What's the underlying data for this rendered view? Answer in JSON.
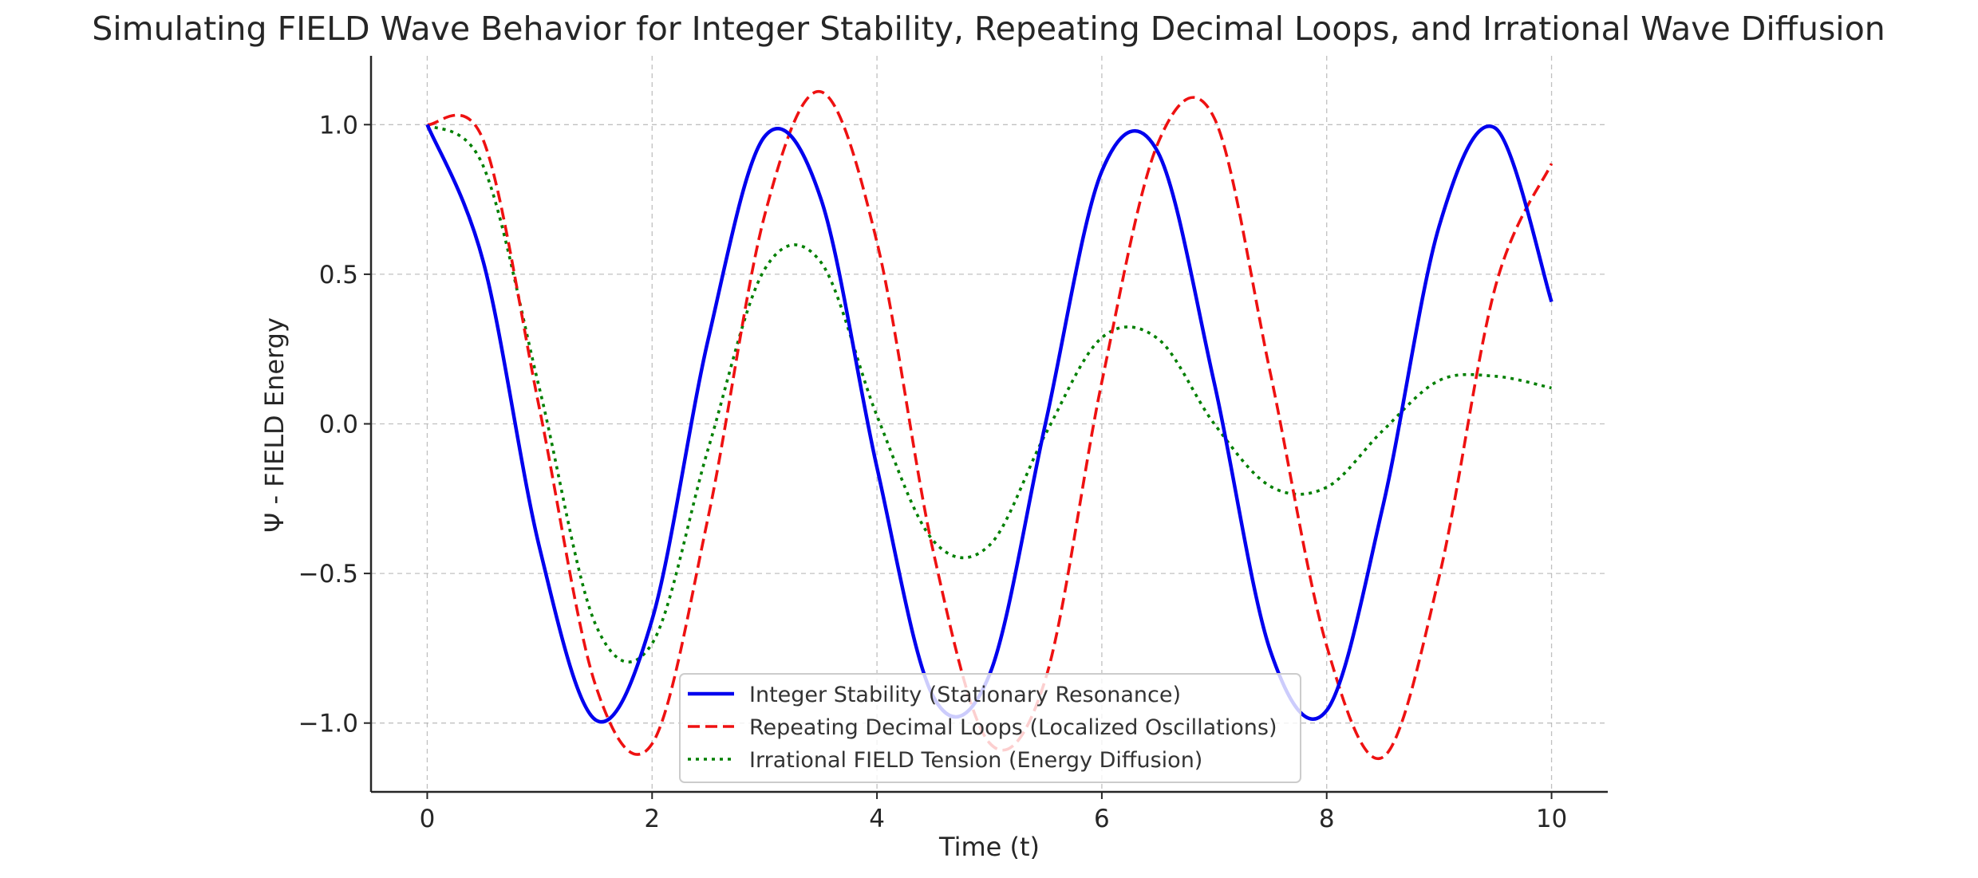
{
  "chart_data": {
    "type": "line",
    "title": "Simulating FIELD Wave Behavior for Integer Stability, Repeating Decimal Loops, and Irrational Wave Diffusion",
    "xlabel": "Time (t)",
    "ylabel": "Ψ - FIELD Energy",
    "xlim": [
      -0.5,
      10.5
    ],
    "ylim": [
      -1.23,
      1.23
    ],
    "x_ticks": [
      0,
      2,
      4,
      6,
      8,
      10
    ],
    "x_tick_labels": [
      "0",
      "2",
      "4",
      "6",
      "8",
      "10"
    ],
    "y_ticks": [
      -1.0,
      -0.5,
      0.0,
      0.5,
      1.0
    ],
    "y_tick_labels": [
      "−1.0",
      "−0.5",
      "0.0",
      "0.5",
      "1.0"
    ],
    "grid": true,
    "legend_position": "lower center",
    "sample_points": [
      0,
      0.5,
      1,
      1.5,
      2,
      2.5,
      3,
      3.5,
      4,
      4.5,
      5,
      5.5,
      6,
      6.5,
      7,
      7.5,
      8,
      8.5,
      9,
      9.5,
      10
    ],
    "series": [
      {
        "name": "Integer Stability (Stationary Resonance)",
        "color": "#0000ee",
        "style": "solid",
        "values": [
          1.0,
          0.54,
          -0.416,
          -0.99,
          -0.654,
          0.284,
          0.96,
          0.754,
          -0.146,
          -0.911,
          -0.839,
          0.004,
          0.844,
          0.907,
          0.137,
          -0.76,
          -0.958,
          -0.275,
          0.66,
          0.988,
          0.408
        ]
      },
      {
        "name": "Repeating Decimal Loops (Localized Oscillations)",
        "color": "#ee1111",
        "style": "dashed",
        "values": [
          1.0,
          0.947,
          0.047,
          -0.877,
          -1.069,
          -0.31,
          0.696,
          1.11,
          0.607,
          -0.425,
          -1.066,
          -0.851,
          0.14,
          0.939,
          1.022,
          0.167,
          -0.742,
          -1.114,
          -0.512,
          0.458,
          0.87
        ]
      },
      {
        "name": "Irrational FIELD Tension (Energy Diffusion)",
        "color": "#007f00",
        "style": "dotted",
        "values": [
          1.0,
          0.86,
          0.115,
          -0.673,
          -0.734,
          -0.082,
          0.516,
          0.541,
          0.027,
          -0.39,
          -0.406,
          -0.033,
          0.288,
          0.284,
          0.0,
          -0.209,
          -0.212,
          -0.022,
          0.145,
          0.159,
          0.12
        ]
      }
    ]
  }
}
